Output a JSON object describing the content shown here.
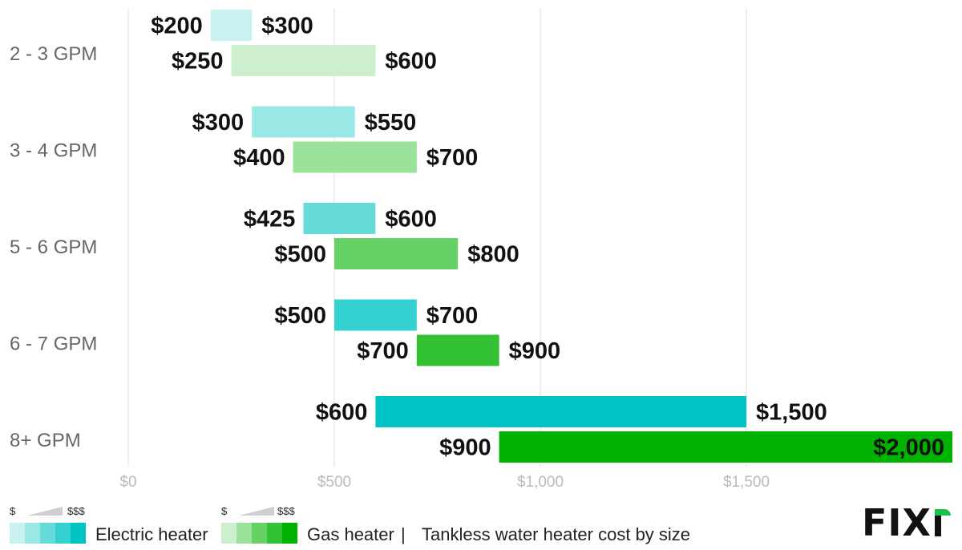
{
  "chart_data": {
    "type": "bar",
    "orientation": "horizontal-range",
    "title": "Tankless water heater cost by size",
    "categories": [
      "2 - 3 GPM",
      "3 - 4 GPM",
      "5 - 6 GPM",
      "6 - 7 GPM",
      "8+ GPM"
    ],
    "series": [
      {
        "name": "Electric heater",
        "ranges": [
          [
            200,
            300
          ],
          [
            300,
            550
          ],
          [
            425,
            600
          ],
          [
            500,
            700
          ],
          [
            600,
            1500
          ]
        ],
        "labels_low": [
          "$200",
          "$300",
          "$425",
          "$500",
          "$600"
        ],
        "labels_high": [
          "$300",
          "$550",
          "$600",
          "$700",
          "$1,500"
        ],
        "colors": [
          "#c9f1f0",
          "#9ae8e6",
          "#66dcda",
          "#33d1cf",
          "#00c4c4"
        ]
      },
      {
        "name": "Gas heater",
        "ranges": [
          [
            250,
            600
          ],
          [
            400,
            700
          ],
          [
            500,
            800
          ],
          [
            700,
            900
          ],
          [
            900,
            2000
          ]
        ],
        "labels_low": [
          "$250",
          "$400",
          "$500",
          "$700",
          "$900"
        ],
        "labels_high": [
          "$600",
          "$700",
          "$800",
          "$900",
          "$2,000"
        ],
        "colors": [
          "#cdefcd",
          "#9ae19a",
          "#66d166",
          "#33c233",
          "#00b300"
        ]
      }
    ],
    "x_ticks": [
      0,
      500,
      1000,
      1500
    ],
    "x_tick_labels": [
      "$0",
      "$500",
      "$1,000",
      "$1,500"
    ],
    "xlim": [
      0,
      2000
    ],
    "grid": true,
    "legend_position": "bottom-left"
  },
  "legend": {
    "electric": {
      "scale_low": "$",
      "scale_high": "$$$",
      "label": "Electric heater",
      "colors": [
        "#c9f1f0",
        "#9ae8e6",
        "#66dcda",
        "#33d1cf",
        "#00c4c4"
      ]
    },
    "gas": {
      "scale_low": "$",
      "scale_high": "$$$",
      "label": "Gas heater",
      "colors": [
        "#cdefcd",
        "#9ae19a",
        "#66d166",
        "#33c233",
        "#00b300"
      ]
    },
    "separator": "|",
    "caption": "Tankless water heater cost by size"
  },
  "brand": {
    "logo_text": "FIX",
    "accent": "#19c04a"
  }
}
